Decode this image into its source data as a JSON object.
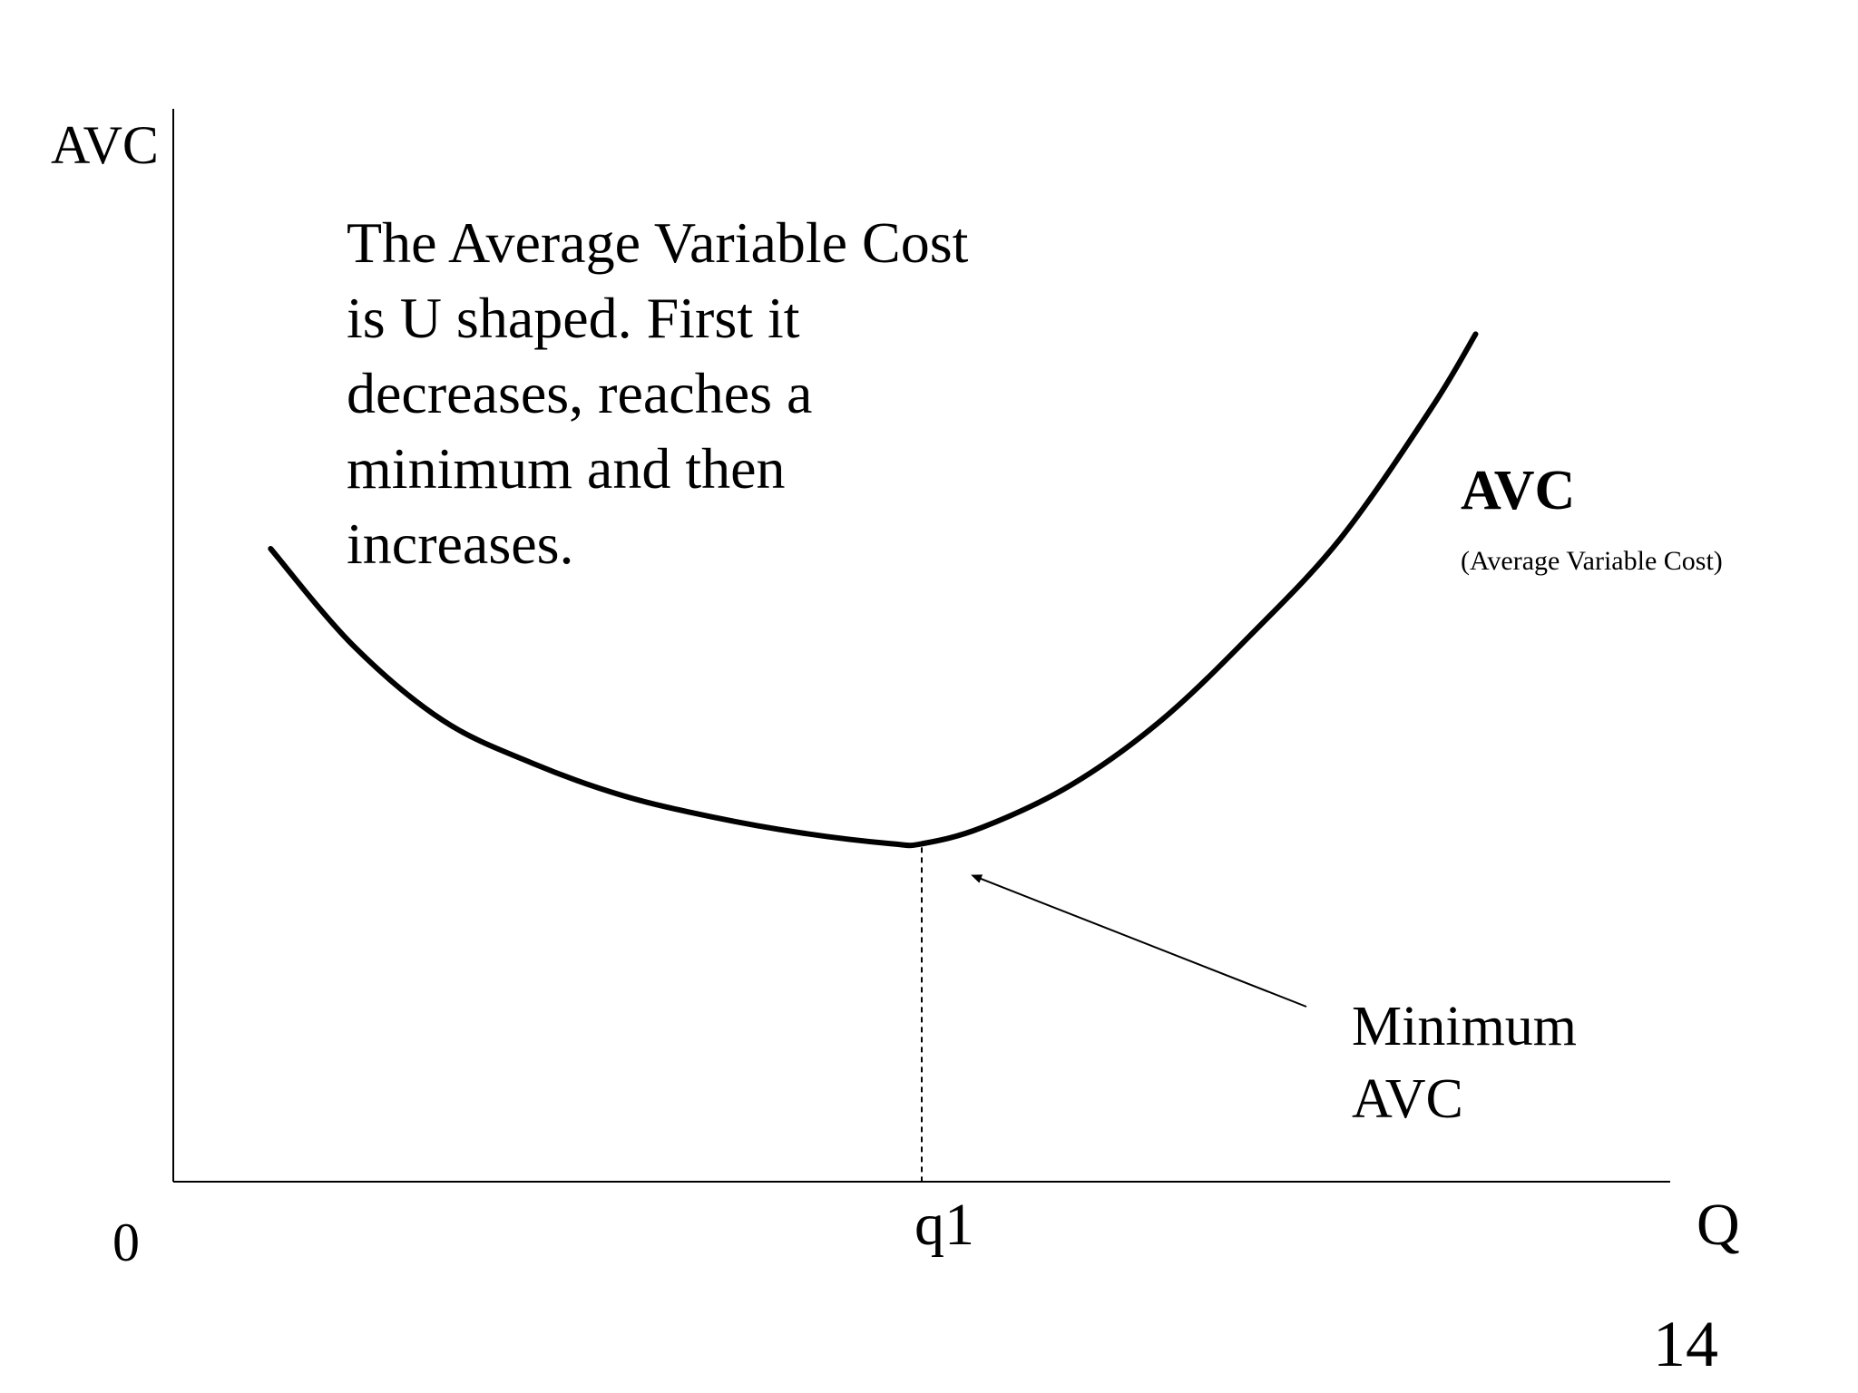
{
  "chart_data": {
    "type": "line",
    "title": "",
    "ylabel": "AVC",
    "xlabel": "Q",
    "origin_label": "0",
    "x_ticks": [
      {
        "value": 0.5,
        "label": "q1"
      }
    ],
    "xlim": [
      0,
      1
    ],
    "ylim": [
      0,
      1
    ],
    "grid": false,
    "legend": "none",
    "series": [
      {
        "name": "AVC",
        "subtitle": "(Average Variable Cost)",
        "color": "#000000",
        "x": [
          0.065,
          0.12,
          0.18,
          0.24,
          0.3,
          0.36,
          0.42,
          0.48,
          0.5,
          0.54,
          0.6,
          0.66,
          0.72,
          0.78,
          0.84,
          0.87
        ],
        "y": [
          0.59,
          0.5,
          0.43,
          0.39,
          0.36,
          0.34,
          0.325,
          0.315,
          0.315,
          0.33,
          0.37,
          0.43,
          0.51,
          0.6,
          0.72,
          0.79
        ]
      }
    ],
    "minimum": {
      "x": 0.5,
      "y": 0.315
    },
    "annotations": [
      {
        "id": "description",
        "lines": [
          "The Average Variable Cost",
          "is U shaped.  First it",
          "decreases, reaches a",
          "minimum and then",
          "increases."
        ]
      },
      {
        "id": "minimum",
        "lines": [
          "Minimum",
          "AVC"
        ],
        "arrow_to": "minimum"
      }
    ]
  },
  "page_number": "14"
}
